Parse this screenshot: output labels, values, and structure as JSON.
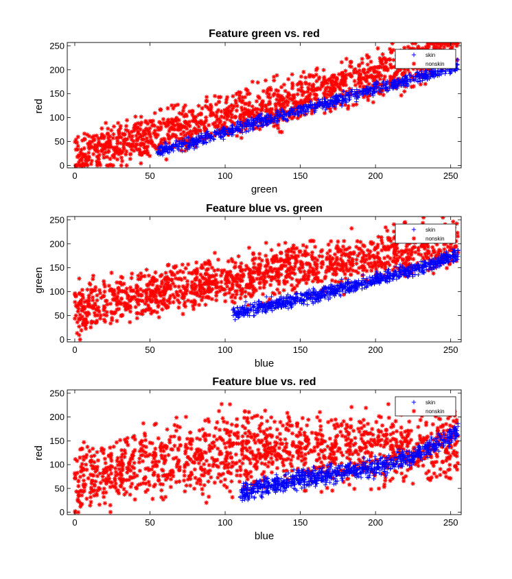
{
  "figure": {
    "background": "#ffffff",
    "colors": {
      "skin": "#0000ff",
      "nonskin": "#ff0000"
    }
  },
  "chart_data": [
    {
      "type": "scatter",
      "title": "Feature green vs. red",
      "xlabel": "green",
      "ylabel": "red",
      "xlim": [
        -5,
        257
      ],
      "ylim": [
        -5,
        257
      ],
      "xticks": [
        0,
        50,
        100,
        150,
        200,
        250
      ],
      "yticks": [
        0,
        50,
        100,
        150,
        200,
        250
      ],
      "legend_position": "top-right",
      "series": [
        {
          "name": "skin",
          "marker": "+",
          "color": "#0000ff",
          "band": {
            "x_range": [
              55,
              255
            ],
            "center": [
              [
                55,
                30
              ],
              [
                80,
                50
              ],
              [
                110,
                80
              ],
              [
                150,
                115
              ],
              [
                200,
                160
              ],
              [
                240,
                195
              ],
              [
                255,
                210
              ]
            ],
            "half_width": 18
          }
        },
        {
          "name": "nonskin",
          "marker": "*",
          "color": "#ff0000",
          "band": {
            "x_range": [
              0,
              255
            ],
            "center": [
              [
                0,
                20
              ],
              [
                50,
                60
              ],
              [
                100,
                100
              ],
              [
                150,
                140
              ],
              [
                200,
                190
              ],
              [
                255,
                245
              ]
            ],
            "half_width": 70
          }
        }
      ]
    },
    {
      "type": "scatter",
      "title": "Feature blue vs. green",
      "xlabel": "blue",
      "ylabel": "green",
      "xlim": [
        -5,
        257
      ],
      "ylim": [
        -5,
        257
      ],
      "xticks": [
        0,
        50,
        100,
        150,
        200,
        250
      ],
      "yticks": [
        0,
        50,
        100,
        150,
        200,
        250
      ],
      "legend_position": "top-right",
      "series": [
        {
          "name": "skin",
          "marker": "+",
          "color": "#0000ff",
          "band": {
            "x_range": [
              105,
              255
            ],
            "center": [
              [
                105,
                55
              ],
              [
                150,
                85
              ],
              [
                200,
                125
              ],
              [
                230,
                150
              ],
              [
                255,
                180
              ]
            ],
            "half_width": 20
          }
        },
        {
          "name": "nonskin",
          "marker": "*",
          "color": "#ff0000",
          "band": {
            "x_range": [
              0,
              255
            ],
            "center": [
              [
                0,
                60
              ],
              [
                50,
                95
              ],
              [
                100,
                125
              ],
              [
                150,
                150
              ],
              [
                200,
                175
              ],
              [
                255,
                200
              ]
            ],
            "half_width": 75
          }
        }
      ]
    },
    {
      "type": "scatter",
      "title": "Feature blue vs. red",
      "xlabel": "blue",
      "ylabel": "red",
      "xlim": [
        -5,
        257
      ],
      "ylim": [
        -5,
        257
      ],
      "xticks": [
        0,
        50,
        100,
        150,
        200,
        250
      ],
      "yticks": [
        0,
        50,
        100,
        150,
        200,
        250
      ],
      "legend_position": "top-right",
      "series": [
        {
          "name": "skin",
          "marker": "+",
          "color": "#0000ff",
          "band": {
            "x_range": [
              110,
              255
            ],
            "center": [
              [
                110,
                40
              ],
              [
                150,
                70
              ],
              [
                200,
                95
              ],
              [
                230,
                125
              ],
              [
                255,
                170
              ]
            ],
            "half_width": 28
          }
        },
        {
          "name": "nonskin",
          "marker": "*",
          "color": "#ff0000",
          "band": {
            "x_range": [
              0,
              255
            ],
            "center": [
              [
                0,
                70
              ],
              [
                50,
                100
              ],
              [
                100,
                130
              ],
              [
                150,
                130
              ],
              [
                200,
                135
              ],
              [
                255,
                140
              ]
            ],
            "half_width": 110
          }
        }
      ]
    }
  ]
}
